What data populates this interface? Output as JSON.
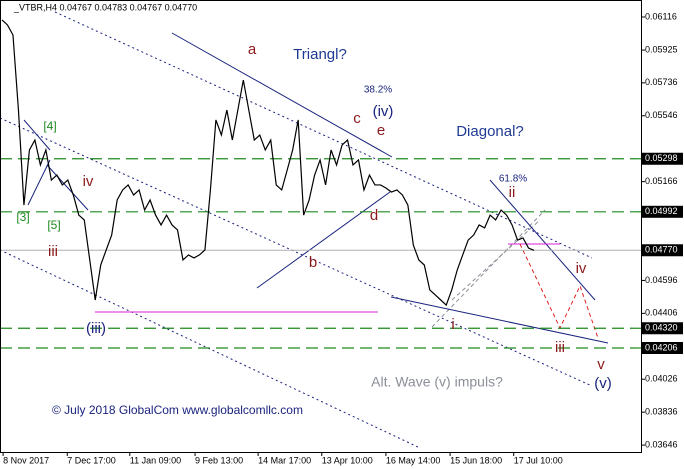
{
  "chart_data": {
    "type": "line",
    "title": "_VTBR,H4  0.04767 0.04783 0.04767 0.04770",
    "color": "#000000",
    "values": [
      0.06099,
      0.0607,
      0.06012,
      0.05579,
      0.05031,
      0.05349,
      0.05406,
      0.05262,
      0.05349,
      0.05175,
      0.05204,
      0.05147,
      0.05175,
      0.05089,
      0.04973,
      0.04945,
      0.04714,
      0.04483,
      0.04685,
      0.04772,
      0.04858,
      0.0506,
      0.05118,
      0.05147,
      0.05089,
      0.05118,
      0.05002,
      0.0506,
      0.04973,
      0.04916,
      0.04973,
      0.04916,
      0.04887,
      0.04714,
      0.04743,
      0.04726,
      0.04743,
      0.04772,
      0.05118,
      0.05522,
      0.05435,
      0.05579,
      0.05406,
      0.05579,
      0.05752,
      0.05579,
      0.05406,
      0.05435,
      0.05349,
      0.05406,
      0.05147,
      0.05118,
      0.05233,
      0.05349,
      0.05522,
      0.04973,
      0.0506,
      0.05204,
      0.05291,
      0.05147,
      0.05349,
      0.05262,
      0.05377,
      0.05406,
      0.05262,
      0.05291,
      0.05118,
      0.05204,
      0.05147,
      0.05147,
      0.05129,
      0.05106,
      0.05118,
      0.05089,
      0.05031,
      0.048,
      0.04714,
      0.04685,
      0.04541,
      0.04512,
      0.04483,
      0.04454,
      0.04541,
      0.04656,
      0.04743,
      0.04829,
      0.04858,
      0.04916,
      0.04899,
      0.04973,
      0.04945,
      0.05002,
      0.04973,
      0.04916,
      0.04829,
      0.04841,
      0.04783,
      0.0477
    ],
    "xlim": [
      0,
      97
    ],
    "xticks": [
      {
        "value": 0.2,
        "label": "8 Nov 2017"
      },
      {
        "value": 11.9,
        "label": "7 Dec 17:00"
      },
      {
        "value": 23.3,
        "label": "11 Jan 09:00"
      },
      {
        "value": 35.2,
        "label": "9 Feb 13:00"
      },
      {
        "value": 46.7,
        "label": "14 Mar 17:00"
      },
      {
        "value": 58.3,
        "label": "13 Apr 10:00"
      },
      {
        "value": 70.0,
        "label": "16 May 14:00"
      },
      {
        "value": 81.7,
        "label": "15 Jun 18:00"
      },
      {
        "value": 93.3,
        "label": "17 Jul 10:00"
      }
    ],
    "ylim": [
      0.03606,
      0.06214
    ],
    "yticks": [
      0.06116,
      0.05925,
      0.05736,
      0.05546,
      0.05166,
      0.04596,
      0.04406,
      0.04026,
      0.03836,
      0.03646
    ],
    "levels": [
      0.05298,
      0.04992,
      {
        "value": 0.0432,
        "label": "0.04320"
      },
      0.04206
    ],
    "level_color": "#1f8a1f",
    "current_price": {
      "value": 0.0477,
      "label": "0.04770"
    },
    "annotations": [
      "a",
      "Triangl?",
      "38.2%",
      "(iv)",
      "c",
      "e",
      "Diagonal?",
      "[4]",
      "iv",
      "[3]",
      "[5]",
      "iii",
      "b",
      "d",
      "61.8%",
      "ii",
      "iv",
      "i",
      "iii",
      "v",
      "(v)",
      "(iii)",
      "Alt. Wave (v) impuls?",
      "© July 2018 GlobalCom www.globalcomllc.com"
    ]
  }
}
